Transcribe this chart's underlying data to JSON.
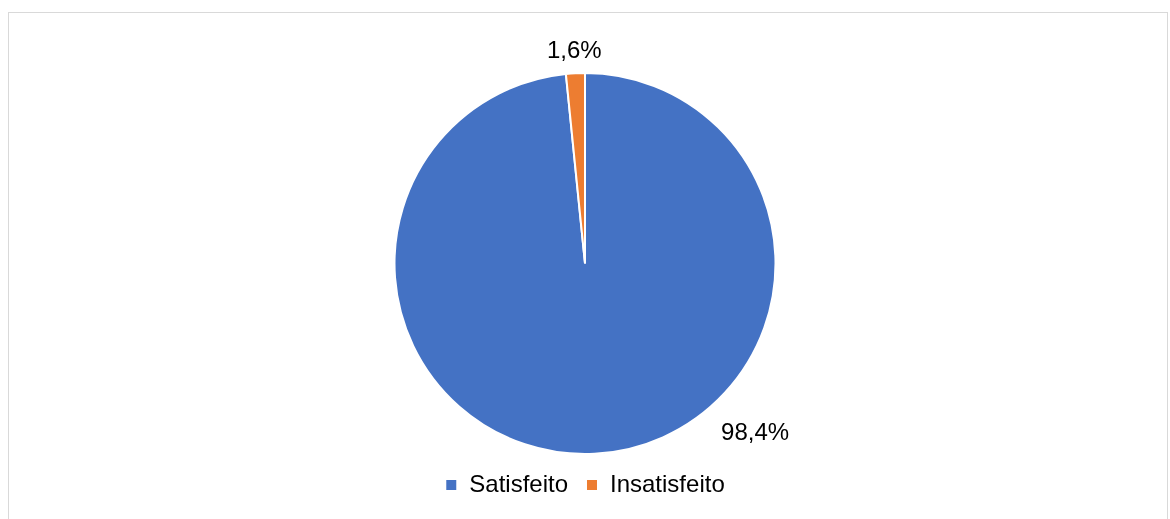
{
  "chart_data": {
    "type": "pie",
    "categories": [
      "Satisfeito",
      "Insatisfeito"
    ],
    "values": [
      98.4,
      1.6
    ],
    "colors": [
      "#4472c4",
      "#ed7d31"
    ],
    "value_labels": [
      "98,4%",
      "1,6%"
    ],
    "legend": "bottom"
  }
}
